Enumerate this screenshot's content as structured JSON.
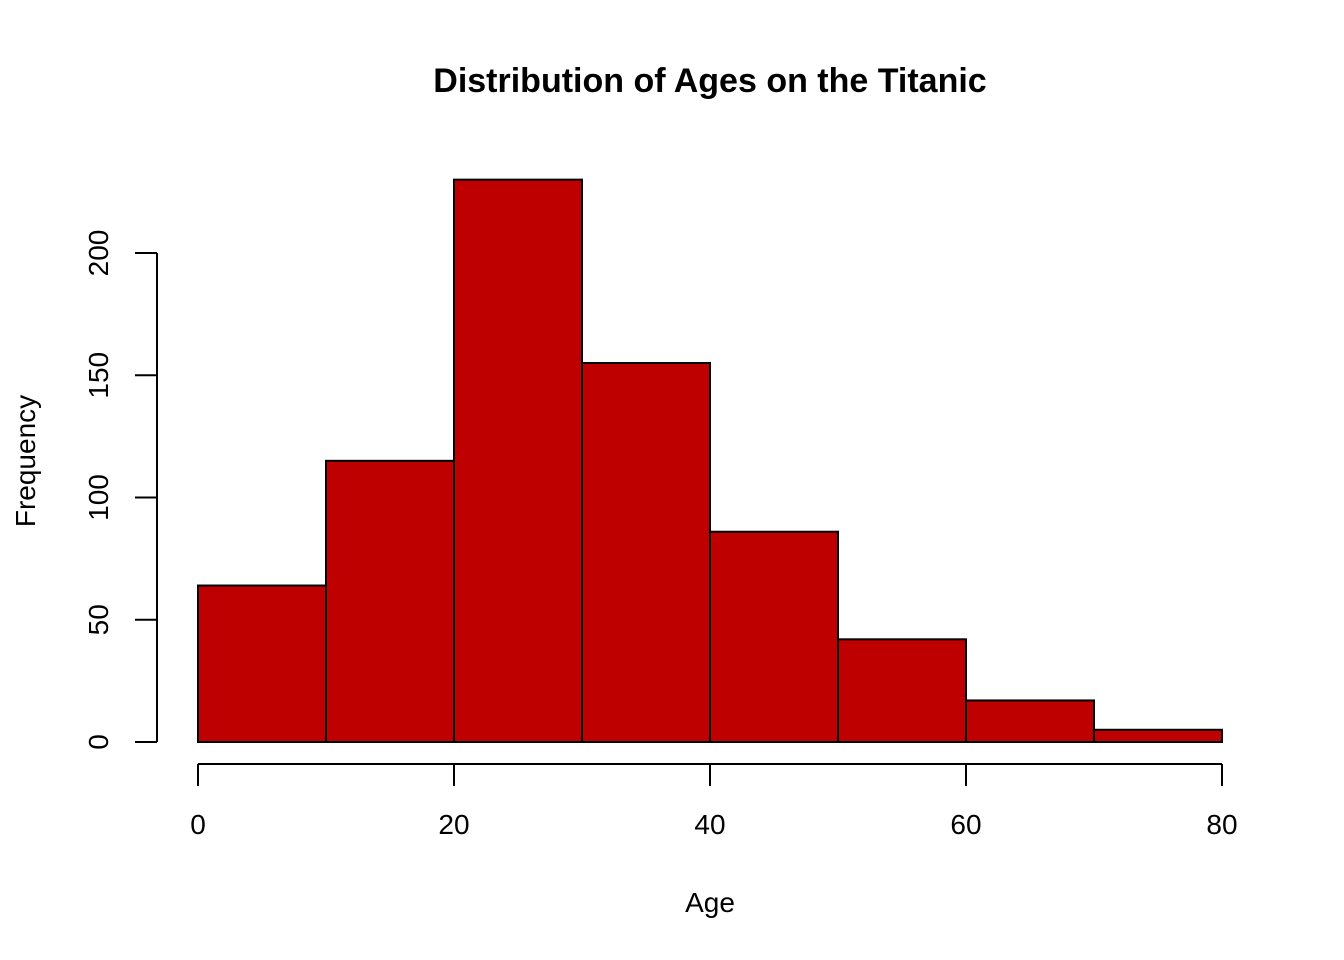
{
  "chart_data": {
    "type": "bar",
    "subtype": "histogram",
    "title": "Distribution of Ages on the Titanic",
    "xlabel": "Age",
    "ylabel": "Frequency",
    "bins": [
      {
        "start": 0,
        "end": 10,
        "count": 64
      },
      {
        "start": 10,
        "end": 20,
        "count": 115
      },
      {
        "start": 20,
        "end": 30,
        "count": 230
      },
      {
        "start": 30,
        "end": 40,
        "count": 155
      },
      {
        "start": 40,
        "end": 50,
        "count": 86
      },
      {
        "start": 50,
        "end": 60,
        "count": 42
      },
      {
        "start": 60,
        "end": 70,
        "count": 17
      },
      {
        "start": 70,
        "end": 80,
        "count": 5
      }
    ],
    "xlim": [
      0,
      80
    ],
    "ylim": [
      0,
      230
    ],
    "x_ticks": [
      0,
      20,
      40,
      60,
      80
    ],
    "y_ticks": [
      0,
      50,
      100,
      150,
      200
    ],
    "bar_color": "#bf0000",
    "border_color": "#000000",
    "grid": false,
    "legend": "none"
  }
}
